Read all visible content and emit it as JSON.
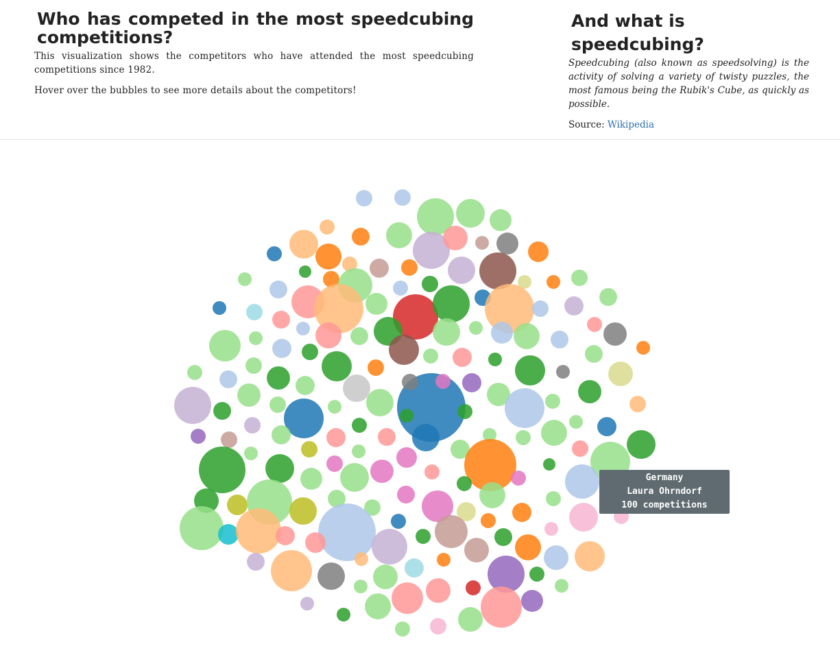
{
  "header": {
    "title": "Who has competed in the most speedcubing competitions?",
    "description": "This visualization shows the competitors who have attended the most speedcubing competitions since 1982.",
    "hint": "Hover over the bubbles to see more details about the competitors!"
  },
  "about": {
    "title": "And what is speedcubing?",
    "definition": "Speedcubing (also known as speedsolving) is the activity of solving a variety of twisty puzzles, the most famous being the Rubik's Cube, as quickly as possible.",
    "source_label": "Source:",
    "source_link": "Wikipedia"
  },
  "tooltip": {
    "country": "Germany",
    "name": "Laura Ohrndorf",
    "competitions": "100 competitions"
  },
  "chart_data": {
    "type": "bubble",
    "title": "",
    "value_unit": "competitions",
    "note": "Bubble area encodes number of competitions attended; color encodes competitor country.",
    "highlighted": {
      "country": "Germany",
      "name": "Laura Ohrndorf",
      "value": 100
    },
    "palette": [
      "#1f77b4",
      "#aec7e8",
      "#ff7f0e",
      "#ffbb78",
      "#2ca02c",
      "#98df8a",
      "#d62728",
      "#ff9896",
      "#9467bd",
      "#c5b0d5",
      "#8c564b",
      "#c49c94",
      "#e377c2",
      "#f7b6d2",
      "#7f7f7f",
      "#c7c7c7",
      "#bcbd22",
      "#dbdb8d",
      "#17becf",
      "#9edae5"
    ]
  }
}
